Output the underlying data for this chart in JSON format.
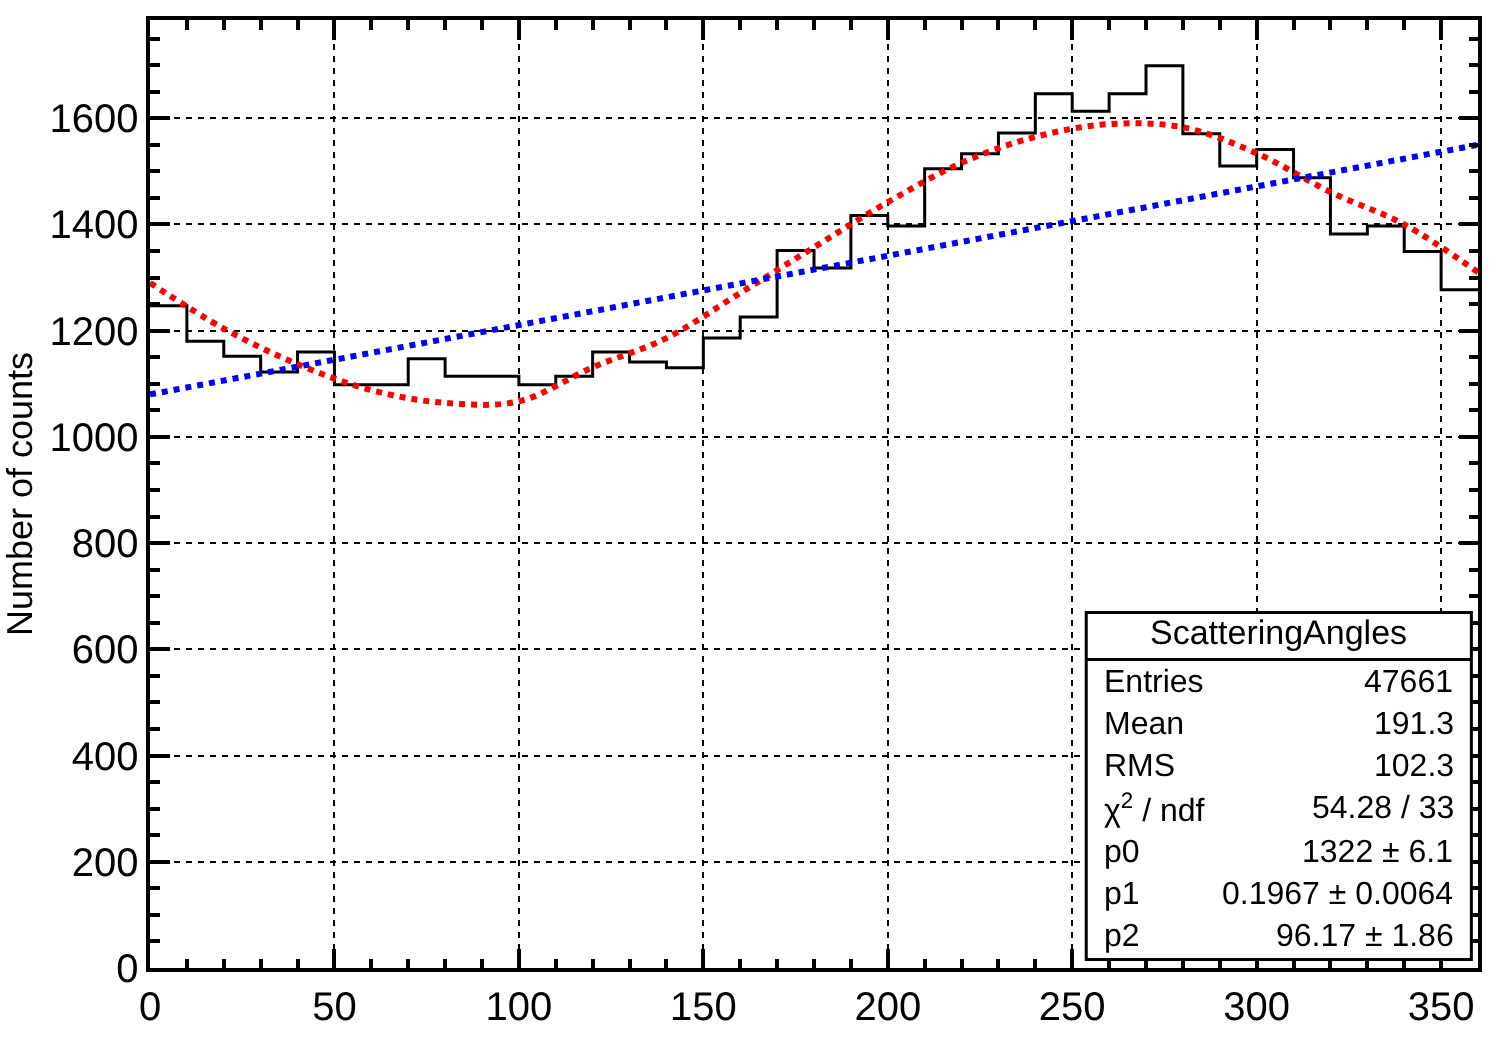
{
  "chart_data": {
    "type": "histogram",
    "ylabel": "Number of counts",
    "bins": [
      0,
      10,
      20,
      30,
      40,
      50,
      60,
      70,
      80,
      90,
      100,
      110,
      120,
      130,
      140,
      150,
      160,
      170,
      180,
      190,
      200,
      210,
      220,
      230,
      240,
      250,
      260,
      270,
      280,
      290,
      300,
      310,
      320,
      330,
      340,
      350,
      360
    ],
    "values": [
      1247,
      1180,
      1152,
      1122,
      1160,
      1098,
      1098,
      1147,
      1114,
      1114,
      1098,
      1114,
      1160,
      1141,
      1130,
      1186,
      1226,
      1351,
      1318,
      1417,
      1397,
      1505,
      1533,
      1572,
      1646,
      1613,
      1646,
      1699,
      1571,
      1510,
      1541,
      1488,
      1382,
      1397,
      1349,
      1277
    ],
    "color": "#000000",
    "series": [
      {
        "type": "line",
        "color": "#ff0000",
        "line_style": "dotted",
        "x": [
          0,
          20,
          40,
          60,
          80,
          100,
          120,
          140,
          160,
          180,
          200,
          220,
          240,
          260,
          280,
          300,
          320,
          340,
          360
        ],
        "values": [
          1290,
          1204,
          1137,
          1088,
          1064,
          1067,
          1131,
          1186,
          1271,
          1357,
          1442,
          1516,
          1565,
          1589,
          1583,
          1534,
          1461,
          1400,
          1310
        ]
      },
      {
        "type": "line",
        "color": "#0000ff",
        "line_style": "dotted",
        "x": [
          0,
          360
        ],
        "values": [
          1080,
          1550
        ]
      }
    ],
    "xlim": [
      0,
      360
    ],
    "xticks": [
      0,
      50,
      100,
      150,
      200,
      250,
      300,
      350
    ],
    "ylim": [
      0,
      1785
    ],
    "yticks": [
      0,
      200,
      400,
      600,
      800,
      1000,
      1200,
      1400,
      1600
    ],
    "grid": true,
    "annotations": [
      "ScatteringAngles",
      "Entries",
      "47661",
      "Mean",
      "191.3",
      "RMS",
      "102.3",
      "χ$^{2}$ / ndf",
      "54.28 / 33",
      "p0",
      "1322 ± 6.1",
      "p1",
      "0.1967 ± 0.0064",
      "p2",
      "96.17 ± 1.86"
    ]
  }
}
